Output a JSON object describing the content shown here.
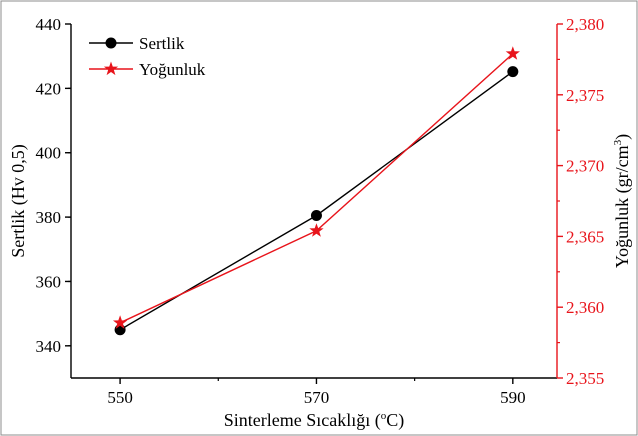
{
  "chart_data": {
    "type": "line",
    "xlabel": "Sinterleme Sıcaklığı (",
    "xlabel_unit": "o",
    "xlabel_unit_end": "C)",
    "ylabel_left": "Sertlik (Hv 0,5)",
    "ylabel_right": "Yoğunluk (gr/cm",
    "ylabel_right_sup": "3",
    "ylabel_right_end": ")",
    "x": [
      550,
      570,
      590
    ],
    "x_ticks": [
      "550",
      "570",
      "590"
    ],
    "xlim": [
      545,
      594.5
    ],
    "ylim_left": [
      330,
      440
    ],
    "ylim_right": [
      2.355,
      2.38
    ],
    "y_ticks_left": [
      "340",
      "360",
      "380",
      "400",
      "420",
      "440"
    ],
    "y_ticks_right": [
      "2,355",
      "2,360",
      "2,365",
      "2,370",
      "2,375",
      "2,380"
    ],
    "grid": false,
    "legend_position": "top-left",
    "colors": {
      "left_series": "#000000",
      "right_series": "#e8141b"
    },
    "series": [
      {
        "name": "Sertlik",
        "axis": "left",
        "marker": "circle",
        "color": "#000000",
        "values": [
          345.0,
          380.5,
          425.2
        ]
      },
      {
        "name": "Yoğunluk",
        "axis": "right",
        "marker": "star",
        "color": "#e8141b",
        "values": [
          2.3589,
          2.3654,
          2.3779
        ]
      }
    ]
  }
}
